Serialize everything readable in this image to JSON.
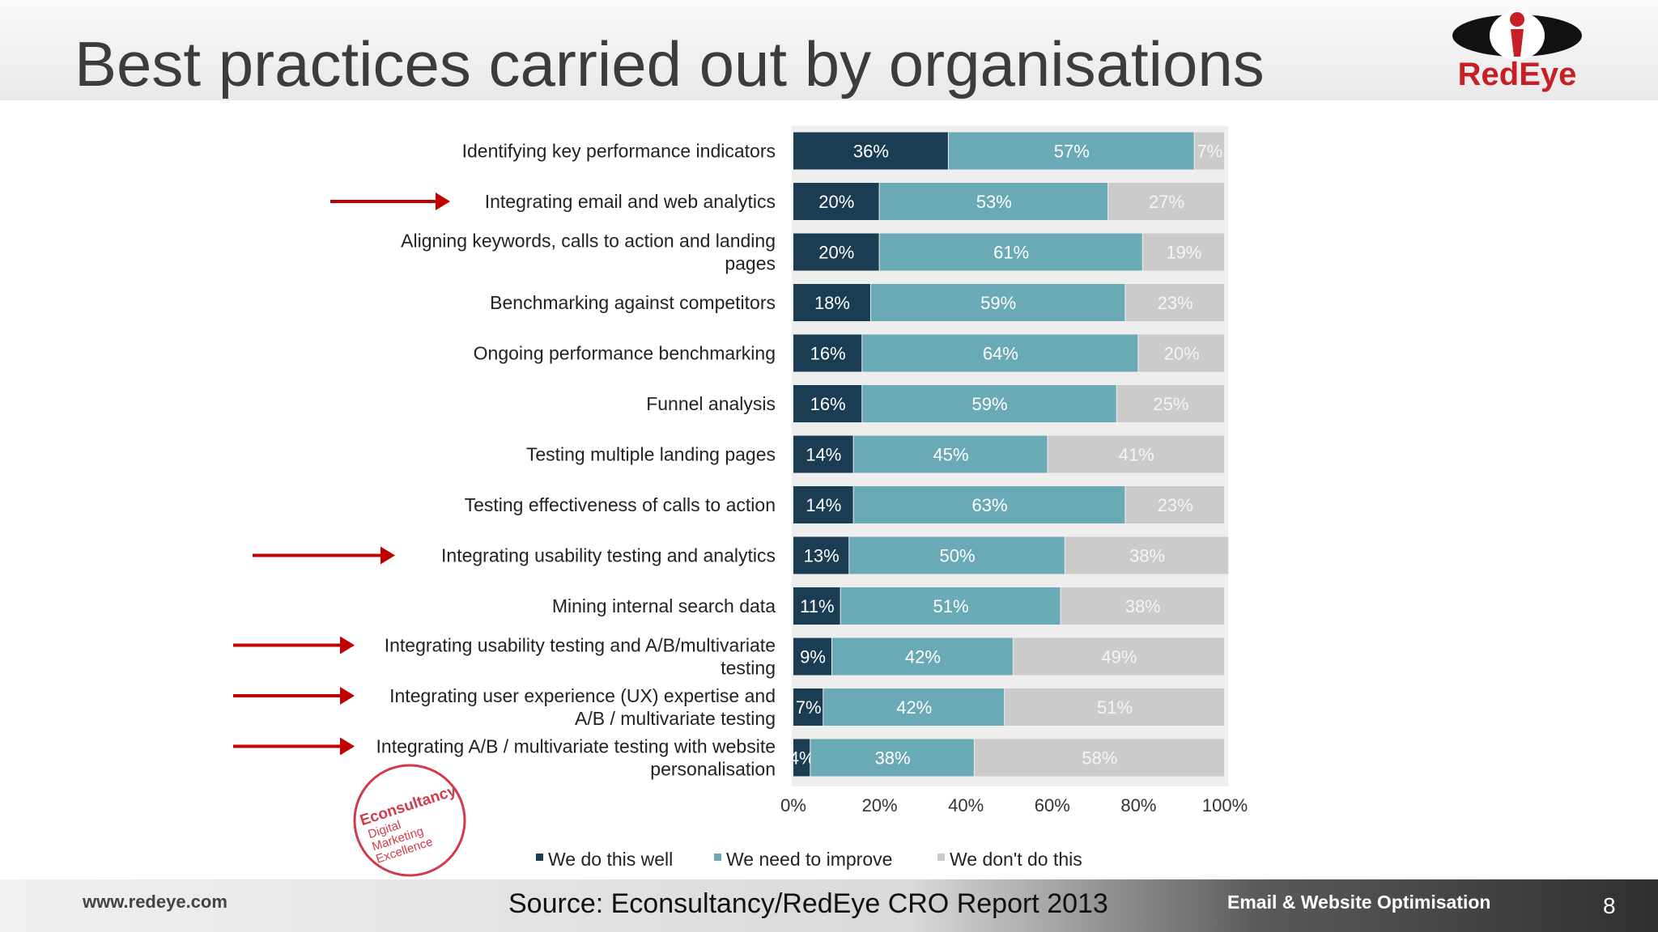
{
  "slide": {
    "title": "Best practices carried out by organisations",
    "logo_text": "RedEye",
    "footer_url": "www.redeye.com",
    "footer_source": "Source: Econsultancy/RedEye CRO Report 2013",
    "footer_tagline": "Email & Website Optimisation",
    "page_number": "8"
  },
  "badge": {
    "name": "Econsultancy",
    "lines": [
      "Digital",
      "Marketing",
      "Excellence"
    ]
  },
  "colors": {
    "do_well": "#1b3d53",
    "need_improve": "#6aa9b6",
    "dont_do": "#cbcbcb",
    "arrow": "#c00000"
  },
  "chart_data": {
    "type": "bar",
    "orientation": "horizontal",
    "stacked": true,
    "unit": "%",
    "xlim": [
      0,
      100
    ],
    "x_ticks": [
      "0%",
      "20%",
      "40%",
      "60%",
      "80%",
      "100%"
    ],
    "legend_position": "bottom",
    "categories": [
      [
        "Identifying key performance indicators"
      ],
      [
        "Integrating email and web analytics"
      ],
      [
        "Aligning keywords, calls to action and landing",
        "pages"
      ],
      [
        "Benchmarking against competitors"
      ],
      [
        "Ongoing performance benchmarking"
      ],
      [
        "Funnel analysis"
      ],
      [
        "Testing multiple landing pages"
      ],
      [
        "Testing effectiveness of calls to action"
      ],
      [
        "Integrating usability testing and analytics"
      ],
      [
        "Mining internal search data"
      ],
      [
        "Integrating usability testing and A/B/multivariate",
        "testing"
      ],
      [
        "Integrating user experience (UX) expertise and",
        "A/B / multivariate testing"
      ],
      [
        "Integrating A/B / multivariate testing with website",
        "personalisation"
      ]
    ],
    "highlighted": [
      false,
      true,
      false,
      false,
      false,
      false,
      false,
      false,
      true,
      false,
      true,
      true,
      true
    ],
    "series": [
      {
        "name": "We do this well",
        "values": [
          36,
          20,
          20,
          18,
          16,
          16,
          14,
          14,
          13,
          11,
          9,
          7,
          4
        ]
      },
      {
        "name": "We need to improve",
        "values": [
          57,
          53,
          61,
          59,
          64,
          59,
          45,
          63,
          50,
          51,
          42,
          42,
          38
        ]
      },
      {
        "name": "We don't do this",
        "values": [
          7,
          27,
          19,
          23,
          20,
          25,
          41,
          23,
          38,
          38,
          49,
          51,
          58
        ]
      }
    ]
  }
}
